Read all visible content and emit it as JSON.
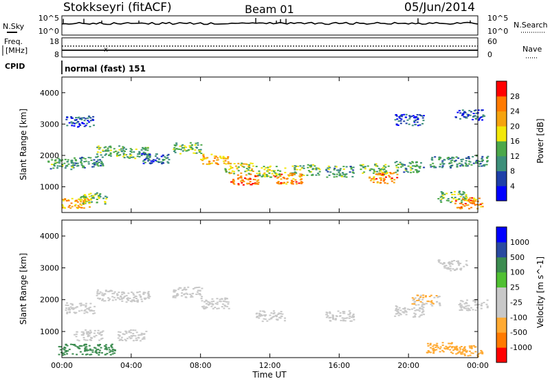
{
  "header": {
    "station": "Stokkseyri (fitACF)",
    "beam": "Beam 01",
    "date": "05/Jun/2014"
  },
  "nsky_panel": {
    "left_label": "N.Sky",
    "left_ticks": [
      "10^5",
      "10^0"
    ],
    "right_ticks": [
      "10^5",
      "10^0"
    ],
    "right_label": "N.Search",
    "right_legend_style": "dotted"
  },
  "freq_panel": {
    "left_label_1": "Freq.",
    "left_label_2": "[MHz]",
    "left_ticks": [
      "18",
      "8"
    ],
    "right_ticks": [
      "60",
      "0"
    ],
    "right_label": "Nave",
    "right_legend_style": "dotted"
  },
  "cpid": {
    "label": "CPID",
    "value": "normal (fast) 151"
  },
  "axes": {
    "ylabel": "Slant Range [km]",
    "yticks": [
      "4000",
      "3000",
      "2000",
      "1000"
    ],
    "xticks": [
      "00:00",
      "04:00",
      "08:00",
      "12:00",
      "16:00",
      "20:00",
      "00:00"
    ],
    "xlabel": "Time UT"
  },
  "colors": {
    "power": [
      "#0000ff",
      "#1e3fa8",
      "#3d8f7a",
      "#4ca84a",
      "#f2e70a",
      "#f5a30f",
      "#ff7a00",
      "#ff0000"
    ],
    "velocity": [
      "#ff0000",
      "#ff7a00",
      "#ffaa33",
      "#c8c8c8",
      "#c8c8c8",
      "#50c032",
      "#3c8c50",
      "#2a4aa0",
      "#0000ff"
    ],
    "ground_scatter": "#c8c8c8"
  },
  "chart_data": [
    {
      "type": "line",
      "title": "N.Sky / N.Search",
      "x": [
        "00:00",
        "04:00",
        "08:00",
        "12:00",
        "16:00",
        "20:00",
        "00:00"
      ],
      "series": [
        {
          "name": "N.Sky",
          "values": [
            30000,
            25000,
            22000,
            24000,
            20000,
            26000,
            28000
          ]
        }
      ],
      "ylim": [
        1,
        100000
      ],
      "log_scale": true
    },
    {
      "type": "line",
      "title": "Freq. / Nave",
      "x": [
        "00:00",
        "04:00",
        "08:00",
        "12:00",
        "16:00",
        "20:00",
        "00:00"
      ],
      "series": [
        {
          "name": "Freq.",
          "values": [
            10,
            10,
            10,
            10,
            10,
            10,
            10
          ]
        },
        {
          "name": "Nave",
          "values": [
            24,
            24,
            24,
            24,
            24,
            24,
            24
          ]
        }
      ]
    },
    {
      "type": "heatmap",
      "title": "",
      "xlabel": "Time UT",
      "ylabel": "Slant Range [km]",
      "x_range": [
        "00:00",
        "24:00"
      ],
      "ylim": [
        180,
        4500
      ],
      "colorbar": {
        "label": "Power [dB]",
        "ticks": [
          4,
          8,
          12,
          16,
          20,
          24,
          28
        ]
      },
      "structures": [
        {
          "time": 0,
          "range": 1750,
          "value": 12
        },
        {
          "time": 1.5,
          "range": 1800,
          "value": 10
        },
        {
          "time": 2.8,
          "range": 2150,
          "value": 14
        },
        {
          "time": 4.2,
          "range": 2100,
          "value": 12
        },
        {
          "time": 5.4,
          "range": 1900,
          "value": 8
        },
        {
          "time": 7.2,
          "range": 2250,
          "value": 14
        },
        {
          "time": 8.8,
          "range": 1900,
          "value": 22
        },
        {
          "time": 10.2,
          "range": 1600,
          "value": 18
        },
        {
          "time": 12.0,
          "range": 1500,
          "value": 16
        },
        {
          "time": 14.0,
          "range": 1550,
          "value": 14
        },
        {
          "time": 16.0,
          "range": 1500,
          "value": 12
        },
        {
          "time": 18.0,
          "range": 1580,
          "value": 14
        },
        {
          "time": 20.0,
          "range": 1650,
          "value": 12
        },
        {
          "time": 22.0,
          "range": 1800,
          "value": 10
        },
        {
          "time": 23.7,
          "range": 1850,
          "value": 10
        },
        {
          "time": 10.5,
          "range": 1250,
          "value": 26
        },
        {
          "time": 13.0,
          "range": 1280,
          "value": 24
        },
        {
          "time": 18.5,
          "range": 1300,
          "value": 24
        },
        {
          "time": 0.8,
          "range": 500,
          "value": 22
        },
        {
          "time": 1.8,
          "range": 650,
          "value": 14
        },
        {
          "time": 22.5,
          "range": 700,
          "value": 14
        },
        {
          "time": 23.4,
          "range": 500,
          "value": 24
        },
        {
          "time": 1.0,
          "range": 3100,
          "value": 6
        },
        {
          "time": 20.0,
          "range": 3150,
          "value": 6
        },
        {
          "time": 23.5,
          "range": 3300,
          "value": 6
        }
      ]
    },
    {
      "type": "heatmap",
      "title": "",
      "xlabel": "Time UT",
      "ylabel": "Slant Range [km]",
      "x_range": [
        "00:00",
        "24:00"
      ],
      "ylim": [
        180,
        4500
      ],
      "colorbar": {
        "label": "Velocity [m s^-1]",
        "ticks": [
          1000,
          500,
          100,
          25,
          -25,
          -100,
          -500,
          -1000
        ]
      },
      "structures": [
        {
          "time": 1.0,
          "range": 1750,
          "value": 0
        },
        {
          "time": 2.8,
          "range": 2150,
          "value": 0
        },
        {
          "time": 4.2,
          "range": 2100,
          "value": 0
        },
        {
          "time": 7.2,
          "range": 2250,
          "value": 0
        },
        {
          "time": 8.8,
          "range": 1900,
          "value": 0
        },
        {
          "time": 12.0,
          "range": 1500,
          "value": 0
        },
        {
          "time": 16.0,
          "range": 1500,
          "value": 0
        },
        {
          "time": 20.0,
          "range": 1650,
          "value": 0
        },
        {
          "time": 23.7,
          "range": 1850,
          "value": 0
        },
        {
          "time": 1.5,
          "range": 900,
          "value": 0
        },
        {
          "time": 4.0,
          "range": 900,
          "value": 0
        },
        {
          "time": 0.6,
          "range": 450,
          "value": 200
        },
        {
          "time": 2.2,
          "range": 450,
          "value": 300
        },
        {
          "time": 21.8,
          "range": 500,
          "value": -300
        },
        {
          "time": 23.4,
          "range": 400,
          "value": -150
        },
        {
          "time": 21.0,
          "range": 2000,
          "value": -100
        },
        {
          "time": 22.5,
          "range": 3100,
          "value": 0
        }
      ]
    }
  ]
}
